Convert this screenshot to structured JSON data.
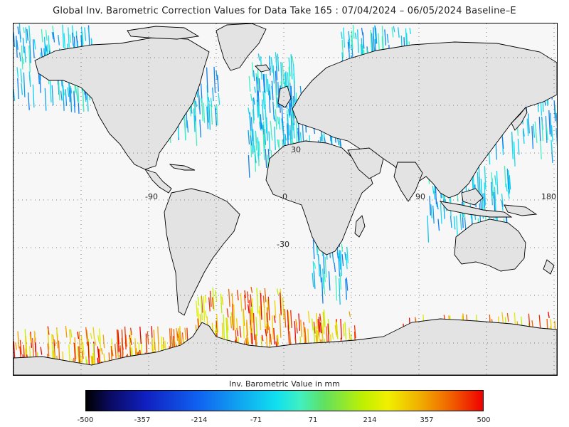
{
  "title": "Global Inv. Barometric Correction Values for Data Take 165 : 07/04/2024 – 06/05/2024 Baseline–E",
  "map": {
    "lat_labels": [
      "30",
      "0",
      "-30"
    ],
    "lon_labels": [
      "-90",
      "0",
      "90",
      "180"
    ],
    "land_color": "#e3e3e3",
    "ocean_color": "#f7f7f7",
    "coast_color": "#000000",
    "grid": "dotted"
  },
  "colorbar": {
    "label": "Inv. Barometric Value in mm",
    "min": -500,
    "max": 500,
    "ticks": [
      "-500",
      "-357",
      "-214",
      "-71",
      "71",
      "214",
      "357",
      "500"
    ]
  }
}
